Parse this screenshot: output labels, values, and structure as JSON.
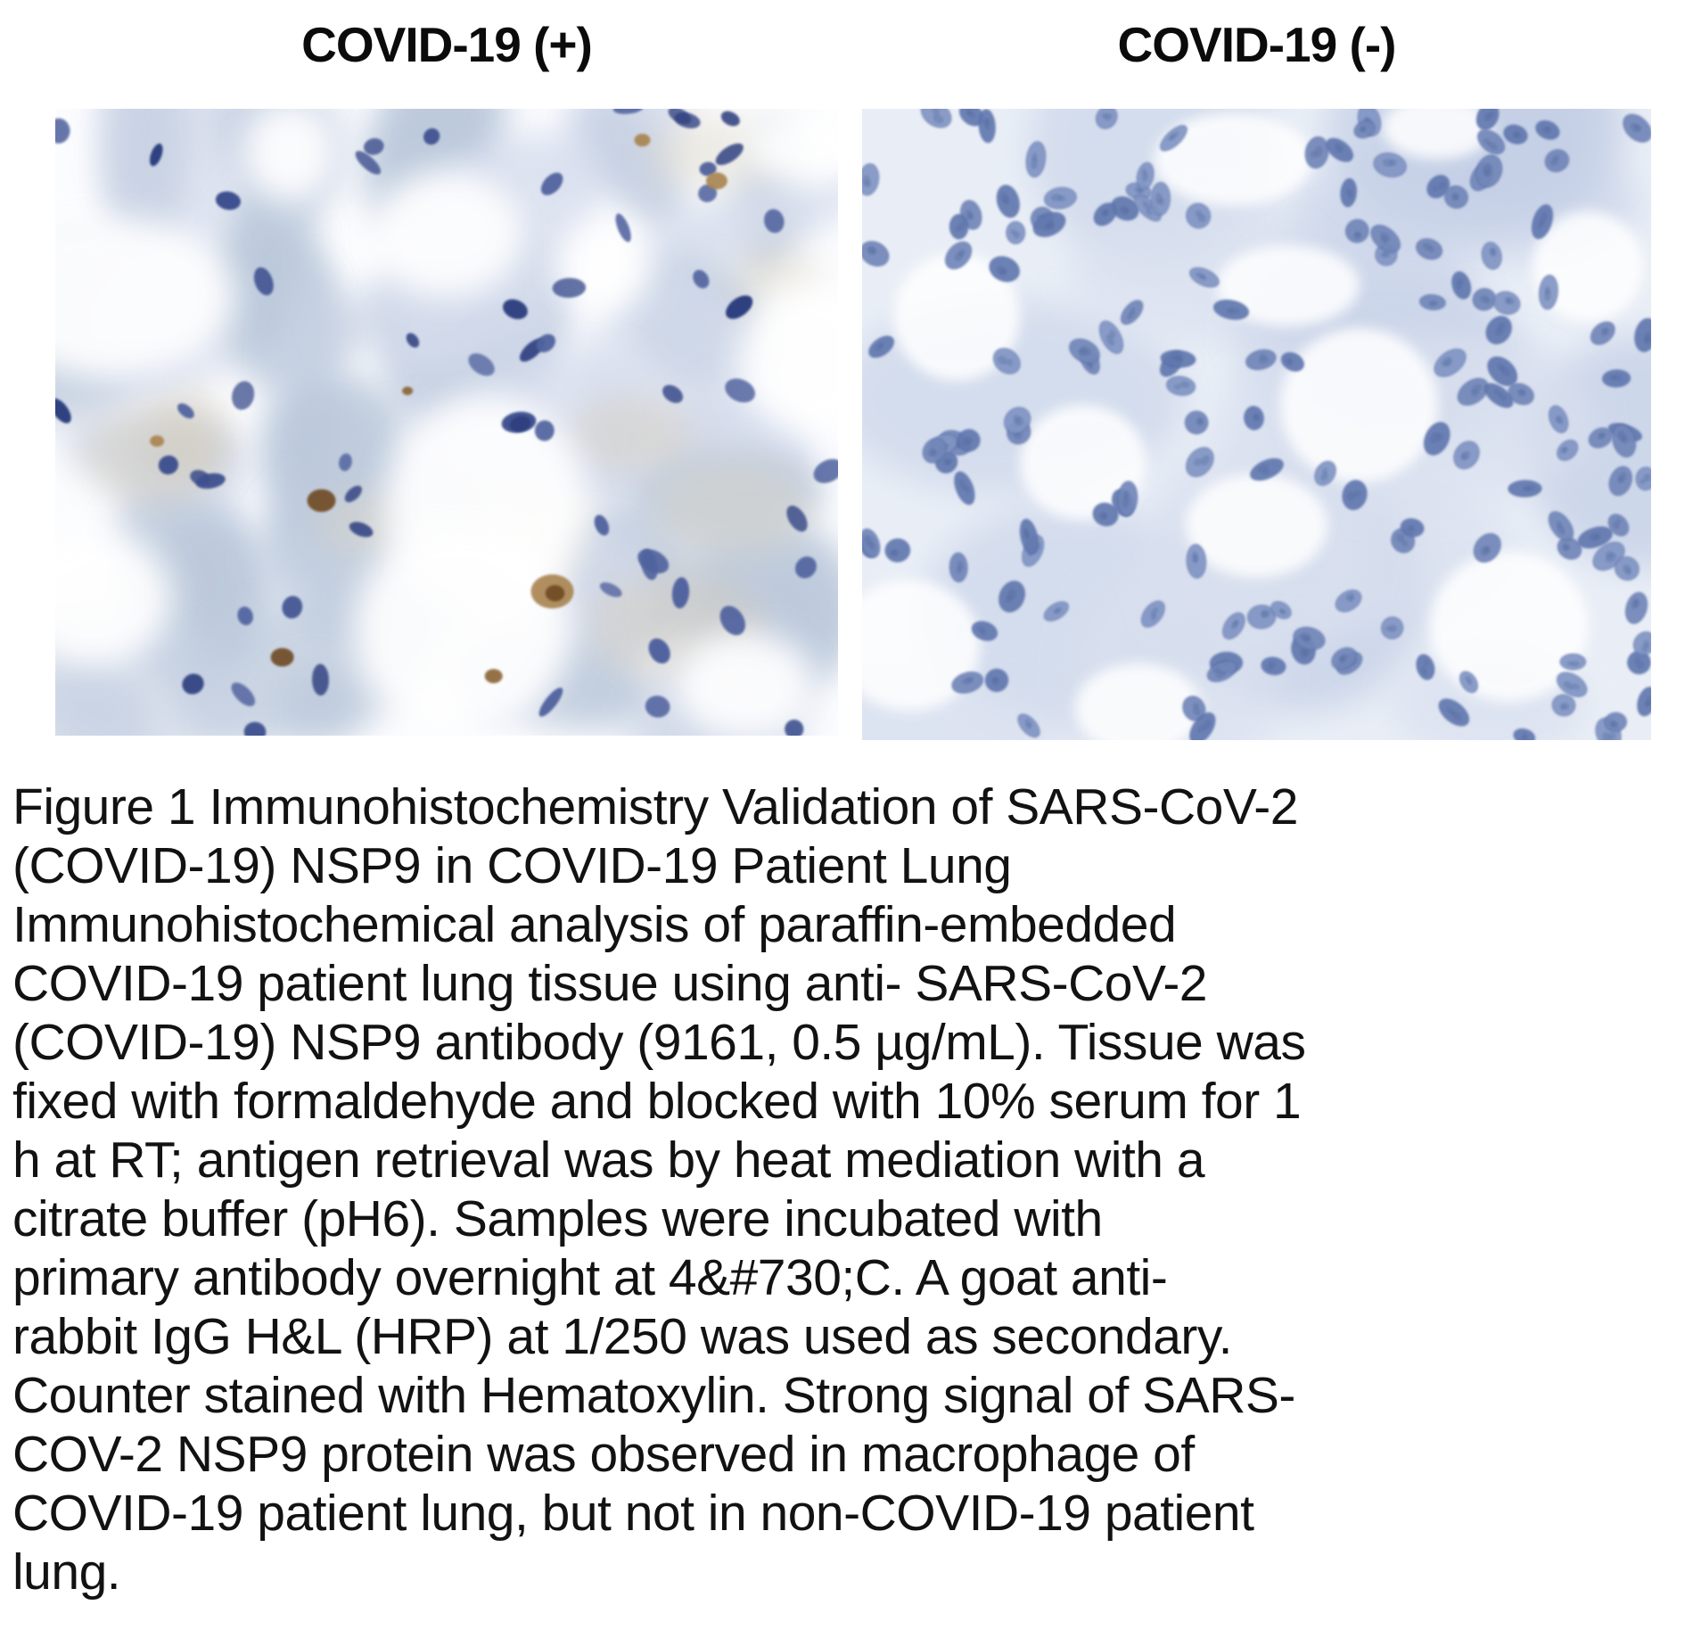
{
  "figure": {
    "panels": [
      {
        "id": "positive",
        "label": "COVID-19 (+)"
      },
      {
        "id": "negative",
        "label": "COVID-19 (-)"
      }
    ],
    "caption": "Figure 1 Immunohistochemistry Validation of SARS-CoV-2\n(COVID-19) NSP9 in COVID-19 Patient Lung\nImmunohistochemical analysis of paraffin-embedded\nCOVID-19 patient lung tissue using anti- SARS-CoV-2\n(COVID-19) NSP9 antibody (9161, 0.5 µg/mL). Tissue was\nfixed with formaldehyde and blocked with 10% serum for 1\nh at RT; antigen retrieval was by heat mediation with a\ncitrate buffer (pH6). Samples were incubated with\nprimary antibody overnight at 4&#730;C. A goat anti-\nrabbit IgG H&L (HRP) at 1/250 was used as secondary.\nCounter stained with Hematoxylin. Strong signal of SARS-\nCOV-2 NSP9 protein was observed in macrophage of\nCOVID-19 patient lung, but not in non-COVID-19 patient\nlung."
  },
  "palette": {
    "page_background": "#ffffff",
    "text_color": "#121212",
    "positive": {
      "background": "#fbfcfe",
      "tissue": [
        "#c7d1e3",
        "#d6dded",
        "#bac7da"
      ],
      "beige": [
        "#ded8c8",
        "#d5cdbc"
      ],
      "nuclei": [
        "#3d4f8e",
        "#2f4080",
        "#51639f"
      ],
      "dab_brown": [
        "#8a6434",
        "#6e4a22",
        "#a8834f"
      ],
      "white": "#ffffff"
    },
    "negative": {
      "background": "#e9eef6",
      "tissue": [
        "#ccd6ea",
        "#d9e0ef",
        "#c2cee5"
      ],
      "nuclei": [
        "#7186b9",
        "#6178af",
        "#8195c4"
      ],
      "nuclei_rim": "#4e66a2",
      "nuclei_texture": "#54699f",
      "white": "#ffffff"
    }
  }
}
